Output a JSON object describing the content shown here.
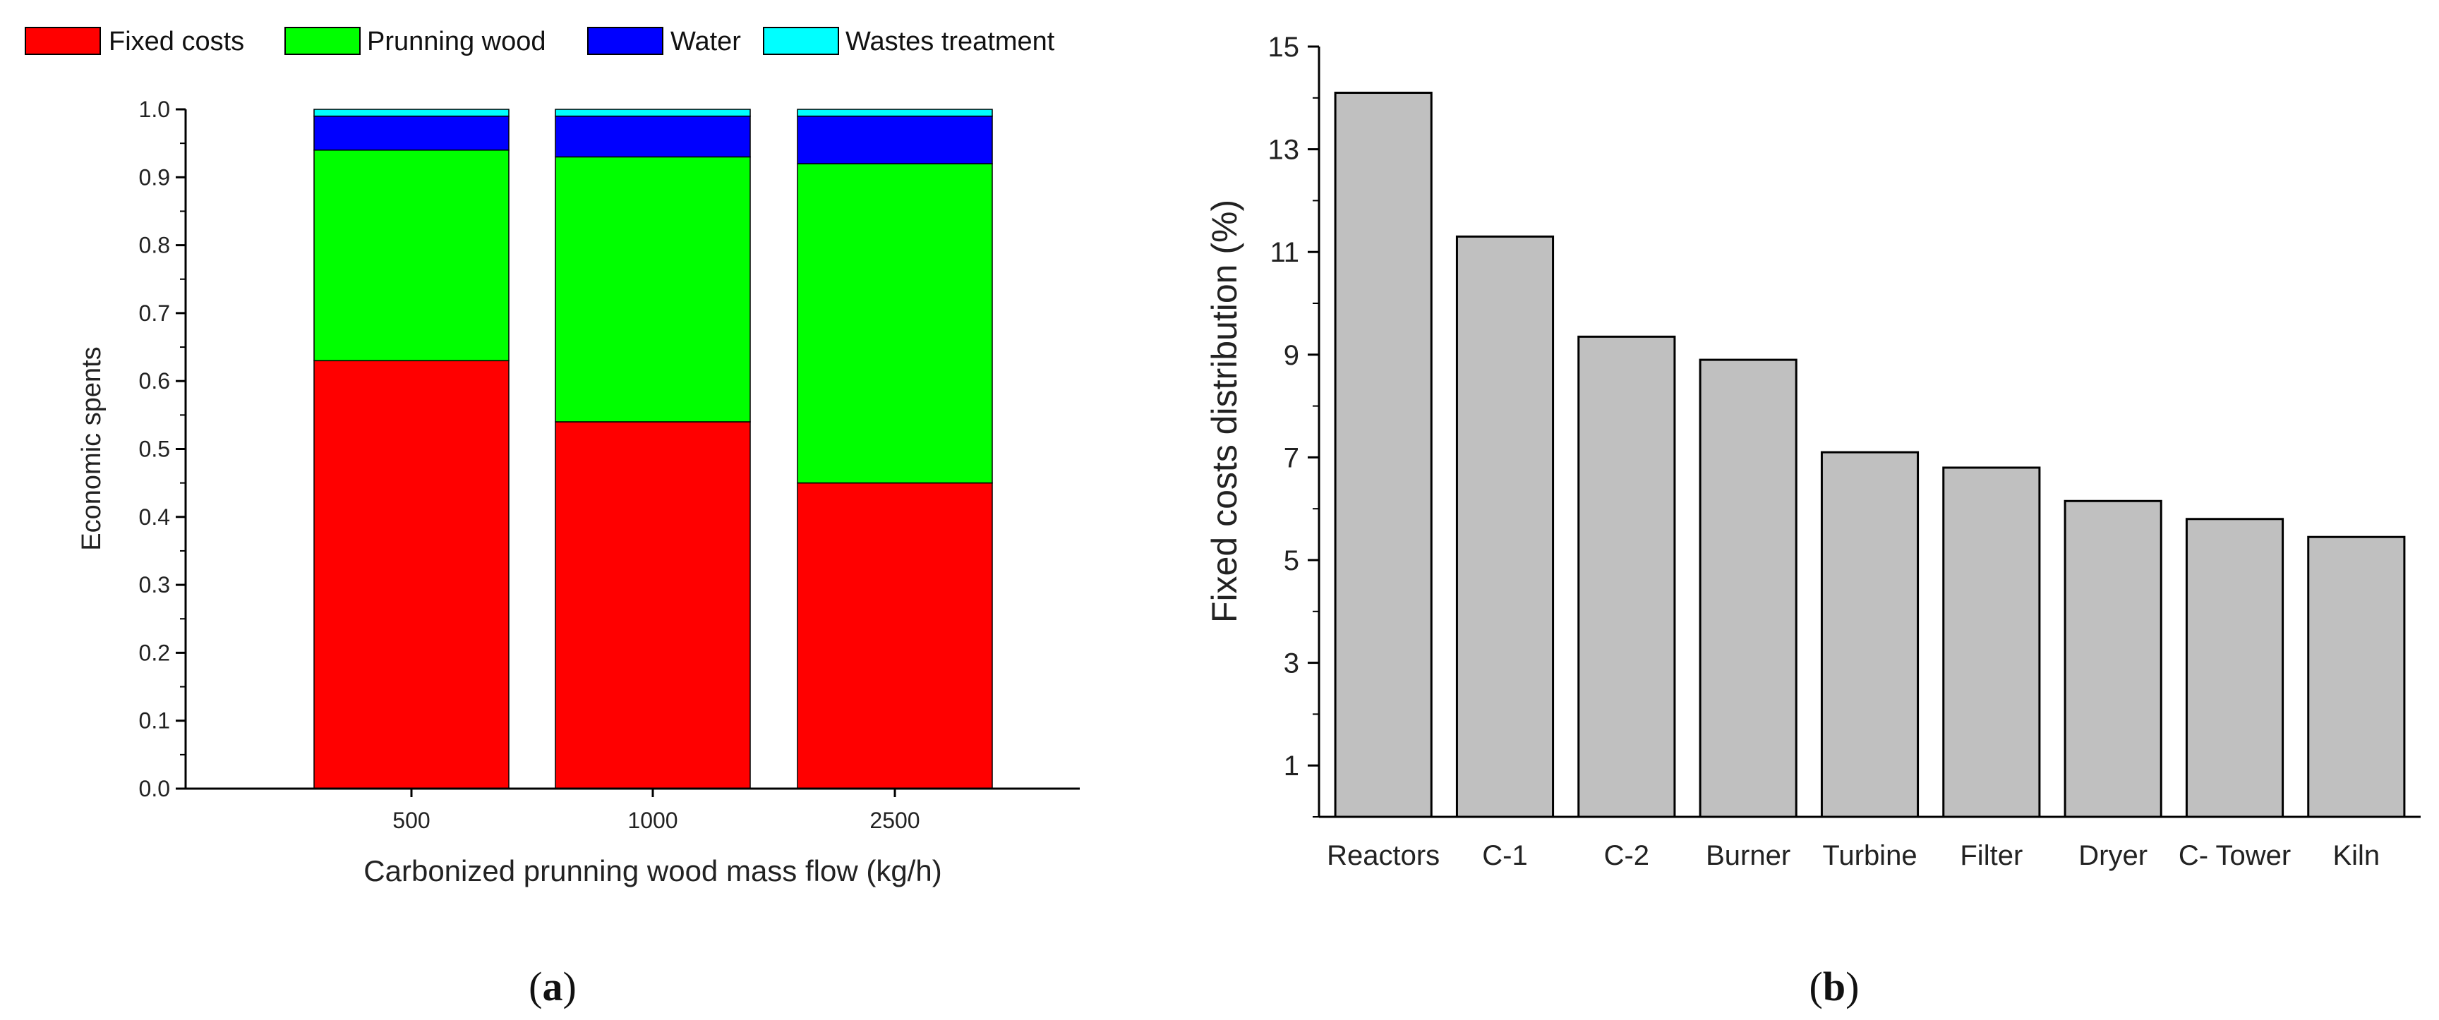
{
  "chart_data": [
    {
      "panel": "(a)",
      "panel_letter": "a",
      "type": "bar",
      "stacked": true,
      "categories": [
        "500",
        "1000",
        "2500"
      ],
      "series": [
        {
          "name": "Fixed costs",
          "color": "#ff0000",
          "values": [
            0.63,
            0.54,
            0.45
          ]
        },
        {
          "name": "Prunning wood",
          "color": "#00ff00",
          "values": [
            0.31,
            0.39,
            0.47
          ]
        },
        {
          "name": "Water",
          "color": "#0000ff",
          "values": [
            0.05,
            0.06,
            0.07
          ]
        },
        {
          "name": "Wastes treatment",
          "color": "#00ffff",
          "values": [
            0.01,
            0.01,
            0.01
          ]
        }
      ],
      "xlabel": "Carbonized prunning wood mass flow (kg/h)",
      "ylabel": "Economic spents",
      "ylim": [
        0,
        1.0
      ],
      "yticks": [
        "0.0",
        "0.1",
        "0.2",
        "0.3",
        "0.4",
        "0.5",
        "0.6",
        "0.7",
        "0.8",
        "0.9",
        "1.0"
      ],
      "legend_position": "top",
      "grid": false
    },
    {
      "panel": "(b)",
      "panel_letter": "b",
      "type": "bar",
      "categories": [
        "Reactors",
        "C-1",
        "C-2",
        "Burner",
        "Turbine",
        "Filter",
        "Dryer",
        "C- Tower",
        "Kiln"
      ],
      "values": [
        14.1,
        11.3,
        9.35,
        8.9,
        7.1,
        6.8,
        6.15,
        5.8,
        5.45
      ],
      "bar_color": "#c0c0c0",
      "ylabel": "Fixed costs distribution (%)",
      "xlabel": "",
      "ylim": [
        0,
        15
      ],
      "yticks": [
        "1",
        "3",
        "5",
        "7",
        "9",
        "11",
        "13",
        "15"
      ],
      "grid": false
    }
  ]
}
